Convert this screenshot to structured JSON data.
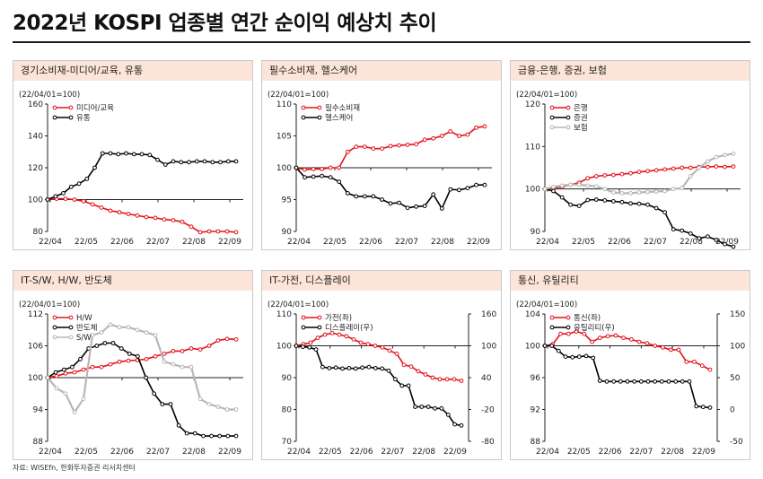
{
  "page": {
    "title": "2022년 KOSPI 업종별 연간 순이익 예상치 추이",
    "source": "자료: WISEfn, 한화투자증권 리서치센터"
  },
  "chart_data": [
    {
      "type": "line",
      "title": "경기소비재-미디어/교육, 유통",
      "index_note": "(22/04/01=100)",
      "x_ticks": [
        "22/04",
        "22/05",
        "22/06",
        "22/07",
        "22/08",
        "22/09"
      ],
      "ylim": [
        80,
        160
      ],
      "y_ticks": [
        80,
        100,
        120,
        140,
        160
      ],
      "legend": "top-left",
      "series": [
        {
          "name": "미디어/교육",
          "color": "#e3121b",
          "axis": "left",
          "values": [
            100,
            100.5,
            100.5,
            100,
            99,
            97,
            95,
            93,
            92,
            91,
            90,
            89,
            88.5,
            87.5,
            87,
            86,
            83,
            79.5,
            80,
            80,
            80,
            79.5
          ]
        },
        {
          "name": "유통",
          "color": "#000000",
          "axis": "left",
          "values": [
            100,
            102,
            104,
            108,
            110,
            113,
            120,
            129,
            129,
            128.5,
            129,
            128.5,
            128.5,
            128,
            125,
            122,
            124,
            123.5,
            123.5,
            124,
            124,
            123.5,
            123.5,
            124,
            124
          ]
        }
      ]
    },
    {
      "type": "line",
      "title": "필수소비재, 헬스케어",
      "index_note": "(22/04/01=100)",
      "x_ticks": [
        "22/04",
        "22/05",
        "22/06",
        "22/07",
        "22/08",
        "22/09"
      ],
      "ylim": [
        90,
        110
      ],
      "y_ticks": [
        90,
        95,
        100,
        105,
        110
      ],
      "legend": "top-left",
      "series": [
        {
          "name": "필수소비재",
          "color": "#e3121b",
          "axis": "left",
          "values": [
            100,
            99.7,
            99.8,
            99.8,
            100,
            100,
            102.5,
            103.3,
            103.3,
            103,
            103,
            103.4,
            103.5,
            103.6,
            103.7,
            104.4,
            104.6,
            105,
            105.7,
            105,
            105.2,
            106.3,
            106.5
          ]
        },
        {
          "name": "헬스케어",
          "color": "#000000",
          "axis": "left",
          "values": [
            100,
            98.5,
            98.6,
            98.7,
            98.5,
            97.8,
            96,
            95.5,
            95.5,
            95.5,
            95,
            94.4,
            94.5,
            93.7,
            93.9,
            94,
            95.8,
            93.6,
            96.6,
            96.5,
            96.8,
            97.3,
            97.3
          ]
        }
      ]
    },
    {
      "type": "line",
      "title": "금융-은행, 증권, 보험",
      "index_note": "(22/04/01=100)",
      "x_ticks": [
        "22/04",
        "22/05",
        "22/06",
        "22/07",
        "22/08",
        "22/09"
      ],
      "ylim": [
        90,
        120
      ],
      "y_ticks": [
        90,
        100,
        110,
        120
      ],
      "legend": "top-left",
      "series": [
        {
          "name": "은행",
          "color": "#e3121b",
          "axis": "left",
          "values": [
            100,
            100.2,
            100.5,
            101,
            101.5,
            102.5,
            103,
            103.2,
            103.3,
            103.5,
            103.7,
            104,
            104.2,
            104.4,
            104.6,
            104.8,
            105,
            105,
            105.2,
            105.2,
            105.3,
            105.2,
            105.3
          ]
        },
        {
          "name": "증권",
          "color": "#000000",
          "axis": "left",
          "values": [
            100,
            99.5,
            98,
            96.3,
            96,
            97.4,
            97.5,
            97.3,
            97.1,
            96.9,
            96.6,
            96.5,
            96.3,
            95.5,
            94.5,
            90.5,
            90.2,
            89.5,
            88.4,
            88.8,
            88,
            87,
            86.4
          ]
        },
        {
          "name": "보험",
          "color": "#b7b7b7",
          "axis": "left",
          "values": [
            100,
            100.5,
            100.8,
            101,
            101,
            100.8,
            100.6,
            100,
            99.2,
            99,
            99,
            99.2,
            99.3,
            99.4,
            99.5,
            100,
            100.2,
            103,
            105,
            106.5,
            107.5,
            108,
            108.3
          ]
        }
      ]
    },
    {
      "type": "line",
      "title": "IT-S/W, H/W, 반도체",
      "index_note": "(22/04/01=100)",
      "x_ticks": [
        "22/04",
        "22/05",
        "22/06",
        "22/07",
        "22/08",
        "22/09"
      ],
      "ylim": [
        88,
        112
      ],
      "y_ticks": [
        88,
        94,
        100,
        106,
        112
      ],
      "legend": "top-left",
      "series": [
        {
          "name": "H/W",
          "color": "#e3121b",
          "axis": "left",
          "values": [
            100,
            100.3,
            100.8,
            101,
            101.5,
            102,
            102,
            102.5,
            103,
            103.2,
            103.3,
            103.5,
            104,
            104.5,
            105,
            105,
            105.5,
            105.3,
            106,
            107,
            107.3,
            107.2
          ]
        },
        {
          "name": "반도체",
          "color": "#000000",
          "axis": "left",
          "values": [
            100,
            101,
            101.5,
            102,
            103.5,
            105.5,
            106,
            106.5,
            106.5,
            105.5,
            104.5,
            104,
            100,
            97,
            95,
            95,
            91,
            89.5,
            89.5,
            89,
            89,
            89,
            89,
            89
          ]
        },
        {
          "name": "S/W",
          "color": "#b7b7b7",
          "axis": "left",
          "values": [
            100,
            98,
            97,
            93.5,
            96,
            108,
            108.5,
            110,
            109.5,
            109.5,
            109,
            108.5,
            108,
            103,
            102.5,
            102,
            102,
            96,
            95,
            94.5,
            94,
            94
          ]
        }
      ]
    },
    {
      "type": "line",
      "title": "IT-가전, 디스플레이",
      "index_note": "(22/04/01=100)",
      "x_ticks": [
        "22/04",
        "22/05",
        "22/06",
        "22/07",
        "22/08",
        "22/09"
      ],
      "ylim": [
        70,
        110
      ],
      "y_ticks": [
        70,
        80,
        90,
        100,
        110
      ],
      "y2lim": [
        -80,
        160
      ],
      "y2_ticks": [
        -80,
        -20,
        40,
        100,
        160
      ],
      "legend": "top-left",
      "series": [
        {
          "name": "가전(좌)",
          "color": "#e3121b",
          "axis": "left",
          "values": [
            100,
            100.5,
            101,
            102.5,
            103.5,
            104,
            103.5,
            103,
            102,
            101,
            100.5,
            100,
            99.5,
            98.5,
            97.5,
            94,
            93.5,
            92,
            91,
            90,
            89.5,
            89.5,
            89.5,
            89
          ]
        },
        {
          "name": "디스플레이(우)",
          "color": "#000000",
          "axis": "right",
          "values": [
            100,
            98,
            97,
            93,
            60,
            58,
            59,
            57,
            58,
            57,
            59,
            60,
            58,
            57,
            53,
            37,
            25,
            25,
            -15,
            -15,
            -15,
            -18,
            -18,
            -30,
            -48,
            -50
          ]
        }
      ]
    },
    {
      "type": "line",
      "title": "통신, 유틸리티",
      "index_note": "(22/04/01=100)",
      "x_ticks": [
        "22/04",
        "22/05",
        "22/06",
        "22/07",
        "22/08",
        "22/09"
      ],
      "ylim": [
        88,
        104
      ],
      "y_ticks": [
        88,
        92,
        96,
        100,
        104
      ],
      "y2lim": [
        -50,
        150
      ],
      "y2_ticks": [
        -50,
        0,
        50,
        100,
        150
      ],
      "legend": "top-left",
      "series": [
        {
          "name": "통신(좌)",
          "color": "#e3121b",
          "axis": "left",
          "values": [
            100,
            100.2,
            101.5,
            101.5,
            101.8,
            101.5,
            100.5,
            101,
            101.2,
            101.3,
            101,
            100.8,
            100.5,
            100.3,
            100,
            99.8,
            99.5,
            99.5,
            98,
            98,
            97.5,
            97
          ]
        },
        {
          "name": "유틸리티(우)",
          "color": "#000000",
          "axis": "right",
          "values": [
            100,
            100,
            92,
            83,
            82,
            83,
            84,
            81,
            45,
            44,
            44,
            44,
            44,
            44,
            44,
            44,
            44,
            44,
            44,
            44,
            44,
            44,
            5,
            4,
            3
          ]
        }
      ]
    }
  ]
}
